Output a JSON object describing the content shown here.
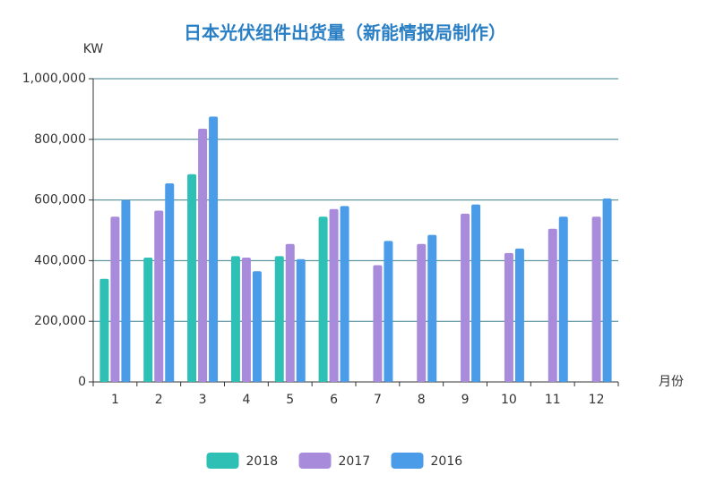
{
  "chart_data": {
    "type": "bar",
    "title": "日本光伏组件出货量（新能情报局制作）",
    "y_label": "KW",
    "x_label": "月份",
    "categories": [
      "1",
      "2",
      "3",
      "4",
      "5",
      "6",
      "7",
      "8",
      "9",
      "10",
      "11",
      "12"
    ],
    "series": [
      {
        "name": "2018",
        "color": "#2ec0b5",
        "values": [
          340000,
          410000,
          685000,
          415000,
          415000,
          545000,
          null,
          null,
          null,
          null,
          null,
          null
        ]
      },
      {
        "name": "2017",
        "color": "#a98bdb",
        "values": [
          545000,
          565000,
          835000,
          410000,
          455000,
          570000,
          385000,
          455000,
          555000,
          425000,
          505000,
          545000
        ]
      },
      {
        "name": "2016",
        "color": "#4a9ce8",
        "values": [
          600000,
          655000,
          875000,
          365000,
          405000,
          580000,
          465000,
          485000,
          585000,
          440000,
          545000,
          605000
        ]
      }
    ],
    "ylim": [
      0,
      1000000
    ],
    "yticks": [
      0,
      {
        "value": 200000,
        "label": "200,000"
      },
      {
        "value": 400000,
        "label": "400,000"
      },
      {
        "value": 600000,
        "label": "600,000"
      },
      {
        "value": 800000,
        "label": "800,000"
      },
      {
        "value": 1000000,
        "label": "1,000,000"
      }
    ],
    "grid": true
  }
}
